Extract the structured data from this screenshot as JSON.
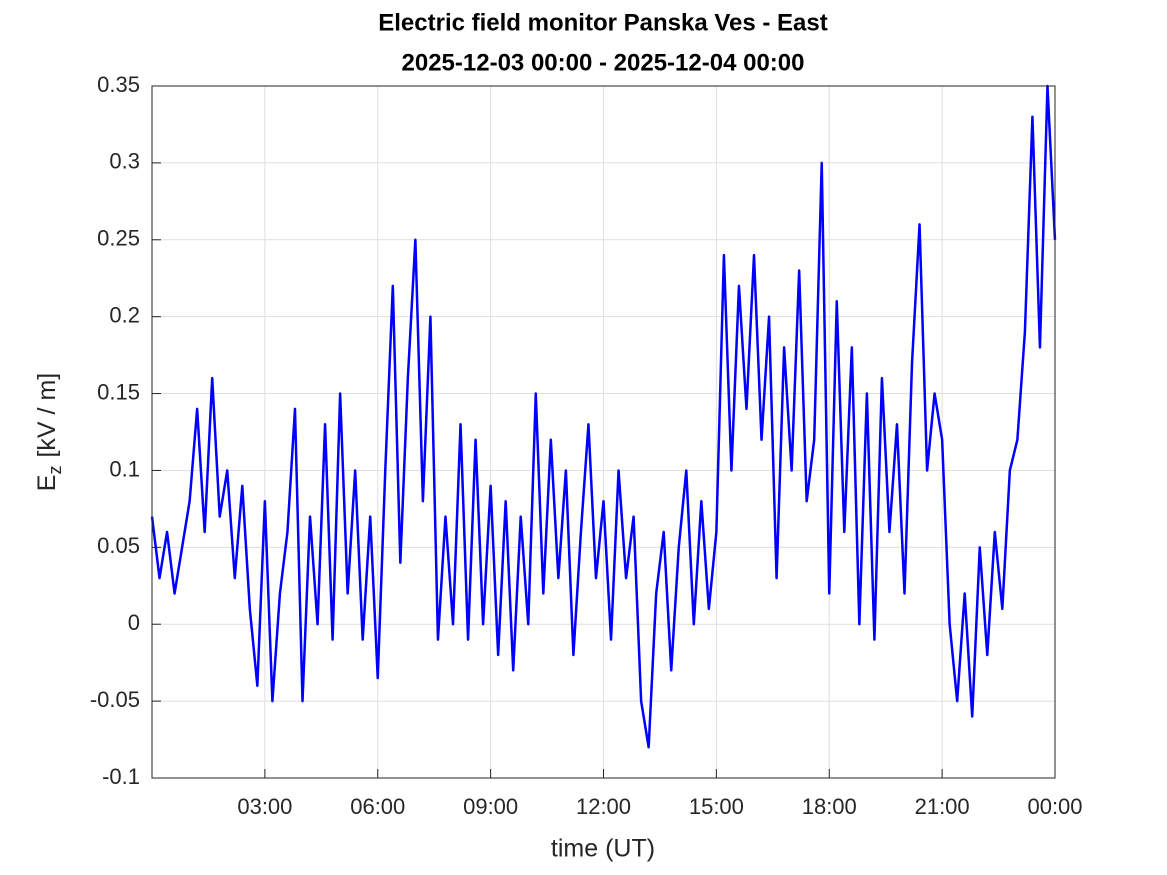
{
  "chart_data": {
    "type": "line",
    "title": "Electric field monitor Panska Ves - East",
    "subtitle": "2025-12-03 00:00 - 2025-12-04 00:00",
    "xlabel": "time (UT)",
    "ylabel": {
      "text": "E",
      "subscript": "z",
      "suffix": "[kV / m]"
    },
    "x": [
      0,
      0.2,
      0.4,
      0.6,
      0.8,
      1,
      1.2,
      1.4,
      1.6,
      1.8,
      2,
      2.2,
      2.4,
      2.6,
      2.8,
      3,
      3.2,
      3.4,
      3.6,
      3.8,
      4,
      4.2,
      4.4,
      4.6,
      4.8,
      5,
      5.2,
      5.4,
      5.6,
      5.8,
      6,
      6.2,
      6.4,
      6.6,
      6.8,
      7,
      7.2,
      7.4,
      7.6,
      7.8,
      8,
      8.2,
      8.4,
      8.6,
      8.8,
      9,
      9.2,
      9.4,
      9.6,
      9.8,
      10,
      10.2,
      10.4,
      10.6,
      10.8,
      11,
      11.2,
      11.4,
      11.6,
      11.8,
      12,
      12.2,
      12.4,
      12.6,
      12.8,
      13,
      13.2,
      13.4,
      13.6,
      13.8,
      14,
      14.2,
      14.4,
      14.6,
      14.8,
      15,
      15.2,
      15.4,
      15.6,
      15.8,
      16,
      16.2,
      16.4,
      16.6,
      16.8,
      17,
      17.2,
      17.4,
      17.6,
      17.8,
      18,
      18.2,
      18.4,
      18.6,
      18.8,
      19,
      19.2,
      19.4,
      19.6,
      19.8,
      20,
      20.2,
      20.4,
      20.6,
      20.8,
      21,
      21.2,
      21.4,
      21.6,
      21.8,
      22,
      22.2,
      22.4,
      22.6,
      22.8,
      23,
      23.2,
      23.4,
      23.6,
      23.8,
      24
    ],
    "series": [
      {
        "name": "Ez",
        "color": "#0000ff",
        "values": [
          0.07,
          0.03,
          0.06,
          0.02,
          0.05,
          0.08,
          0.14,
          0.06,
          0.16,
          0.07,
          0.1,
          0.03,
          0.09,
          0.01,
          -0.04,
          0.08,
          -0.05,
          0.02,
          0.06,
          0.14,
          -0.05,
          0.07,
          0.0,
          0.13,
          -0.01,
          0.15,
          0.02,
          0.1,
          -0.01,
          0.07,
          -0.035,
          0.1,
          0.22,
          0.04,
          0.16,
          0.25,
          0.08,
          0.2,
          -0.01,
          0.07,
          0.0,
          0.13,
          -0.01,
          0.12,
          0.0,
          0.09,
          -0.02,
          0.08,
          -0.03,
          0.07,
          0.0,
          0.15,
          0.02,
          0.12,
          0.03,
          0.1,
          -0.02,
          0.06,
          0.13,
          0.03,
          0.08,
          -0.01,
          0.1,
          0.03,
          0.07,
          -0.05,
          -0.08,
          0.02,
          0.06,
          -0.03,
          0.05,
          0.1,
          0.0,
          0.08,
          0.01,
          0.06,
          0.24,
          0.1,
          0.22,
          0.14,
          0.24,
          0.12,
          0.2,
          0.03,
          0.18,
          0.1,
          0.23,
          0.08,
          0.12,
          0.3,
          0.02,
          0.21,
          0.06,
          0.18,
          0.0,
          0.15,
          -0.01,
          0.16,
          0.06,
          0.13,
          0.02,
          0.17,
          0.26,
          0.1,
          0.15,
          0.12,
          0.0,
          -0.05,
          0.02,
          -0.06,
          0.05,
          -0.02,
          0.06,
          0.01,
          0.1,
          0.12,
          0.19,
          0.33,
          0.18,
          0.35,
          0.25
        ]
      }
    ],
    "xlim": [
      0,
      24
    ],
    "xticks": [
      {
        "value": 3,
        "label": "03:00"
      },
      {
        "value": 6,
        "label": "06:00"
      },
      {
        "value": 9,
        "label": "09:00"
      },
      {
        "value": 12,
        "label": "12:00"
      },
      {
        "value": 15,
        "label": "15:00"
      },
      {
        "value": 18,
        "label": "18:00"
      },
      {
        "value": 21,
        "label": "21:00"
      },
      {
        "value": 24,
        "label": "00:00"
      }
    ],
    "ylim": [
      -0.1,
      0.35
    ],
    "yticks": [
      -0.1,
      -0.05,
      0,
      0.05,
      0.1,
      0.15,
      0.2,
      0.25,
      0.3,
      0.35
    ],
    "grid": true
  }
}
